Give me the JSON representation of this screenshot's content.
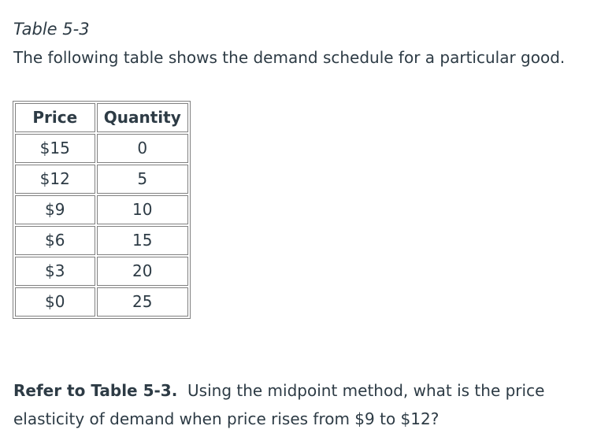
{
  "document": {
    "table_label": "Table 5-3",
    "intro": "The following table shows the demand schedule for a particular good.",
    "table": {
      "headers": [
        "Price",
        "Quantity"
      ],
      "rows": [
        [
          "$15",
          "0"
        ],
        [
          "$12",
          "5"
        ],
        [
          "$9",
          "10"
        ],
        [
          "$6",
          "15"
        ],
        [
          "$3",
          "20"
        ],
        [
          "$0",
          "25"
        ]
      ]
    },
    "question": {
      "reference": "Refer to Table 5-3.",
      "text": "Using the midpoint method, what is the price elasticity of demand when price rises from $9 to $12?"
    }
  },
  "colors": {
    "text": "#2d3b45",
    "border": "#808080",
    "background": "#ffffff"
  }
}
